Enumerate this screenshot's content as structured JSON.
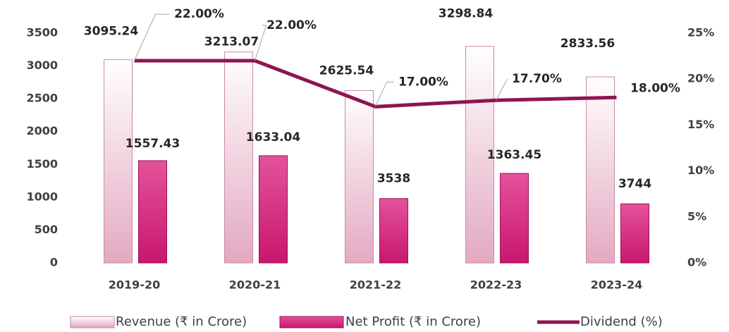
{
  "chart_data": {
    "type": "bar-line",
    "categories": [
      "2019-20",
      "2020-21",
      "2021-22",
      "2022-23",
      "2023-24"
    ],
    "series": [
      {
        "name": "Revenue (₹ in Crore)",
        "color": "#e3a9c1",
        "values": [
          3095.24,
          3213.07,
          2625.54,
          3298.84,
          2833.56
        ]
      },
      {
        "name": "Net Profit (₹ in Crore)",
        "color": "#c8176e",
        "values": [
          1557.43,
          1633.04,
          980,
          1363.45,
          900
        ]
      },
      {
        "name": "Dividend (%)",
        "color": "#8e1550",
        "axis": "y2",
        "values": [
          22,
          22,
          17,
          17.7,
          18
        ],
        "value_labels": [
          "22.00%",
          "22.00%",
          "17.00%",
          "17.70%",
          "18.00%"
        ]
      }
    ],
    "annotations": [
      "3538",
      "3744"
    ],
    "ylim": [
      0,
      3500
    ],
    "yticks": [
      0,
      500,
      1000,
      1500,
      2000,
      2500,
      3000,
      3500
    ],
    "y2lim": [
      0,
      25
    ],
    "y2ticks": [
      {
        "value": 0,
        "label": "0%"
      },
      {
        "value": 5,
        "label": "5%"
      },
      {
        "value": 10,
        "label": "10%"
      },
      {
        "value": 15,
        "label": "15%"
      },
      {
        "value": 20,
        "label": "20%"
      },
      {
        "value": 25,
        "label": "25%"
      }
    ],
    "legend": "bottom"
  }
}
